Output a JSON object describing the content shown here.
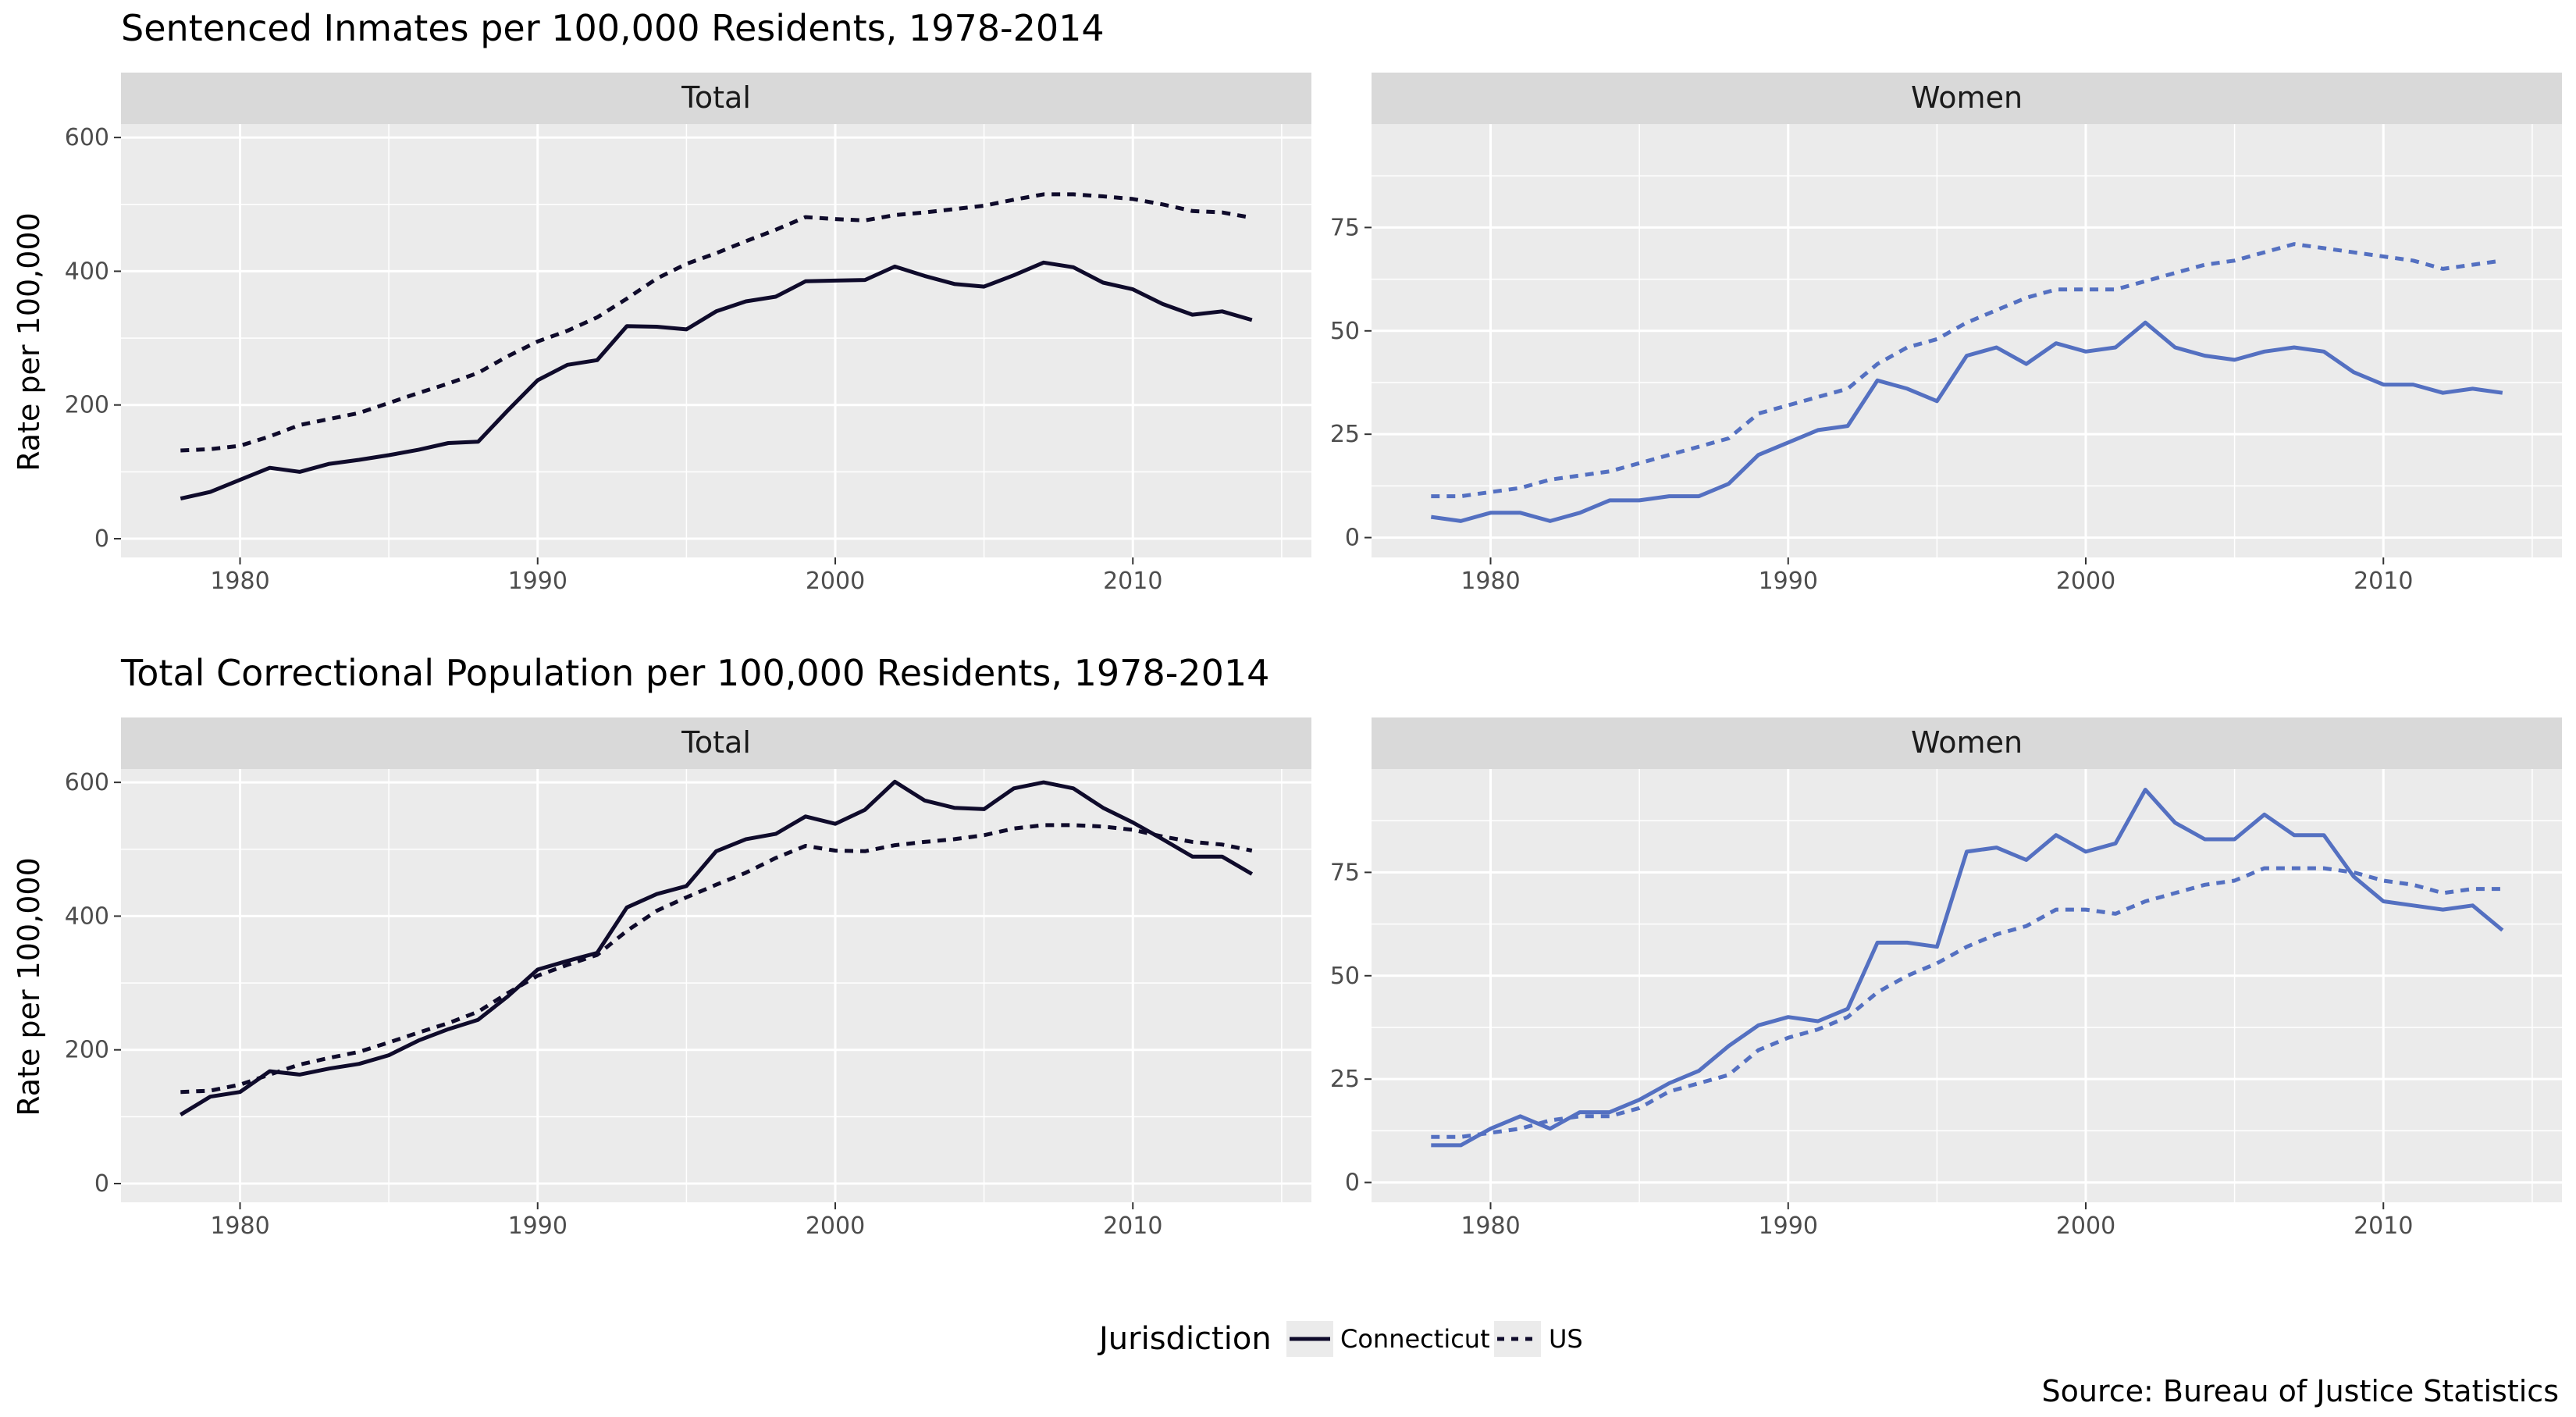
{
  "colors": {
    "total": "#0f0b2b",
    "women": "#5470c1",
    "panel_bg": "#ebebeb",
    "strip_bg": "#d9d9d9",
    "grid": "#ffffff"
  },
  "legend": {
    "title": "Jurisdiction",
    "items": [
      {
        "label": "Connecticut",
        "linetype": "solid"
      },
      {
        "label": "US",
        "linetype": "dashed"
      }
    ]
  },
  "caption": "Source: Bureau of Justice Statistics",
  "chart_data": [
    {
      "type": "line",
      "title": "Sentenced Inmates per 100,000 Residents, 1978-2014",
      "ylabel": "Rate per 100,000",
      "panels": [
        {
          "strip": "Total",
          "color_key": "total",
          "xlim": [
            1976,
            2016
          ],
          "xticks": [
            1980,
            1990,
            2000,
            2010
          ],
          "ylim": [
            -28,
            620
          ],
          "yticks": [
            0,
            200,
            400,
            600
          ],
          "x": [
            1978,
            1979,
            1980,
            1981,
            1982,
            1983,
            1984,
            1985,
            1986,
            1987,
            1988,
            1989,
            1990,
            1991,
            1992,
            1993,
            1994,
            1995,
            1996,
            1997,
            1998,
            1999,
            2000,
            2001,
            2002,
            2003,
            2004,
            2005,
            2006,
            2007,
            2008,
            2009,
            2010,
            2011,
            2012,
            2013,
            2014
          ],
          "series": [
            {
              "name": "Connecticut",
              "linetype": "solid",
              "values": [
                60,
                70,
                88,
                106,
                100,
                112,
                118,
                125,
                133,
                143,
                145,
                192,
                237,
                260,
                267,
                318,
                317,
                313,
                340,
                355,
                362,
                385,
                386,
                387,
                407,
                393,
                381,
                377,
                394,
                413,
                406,
                383,
                373,
                351,
                335,
                340,
                327
              ]
            },
            {
              "name": "US",
              "linetype": "dashed",
              "values": [
                132,
                134,
                139,
                153,
                170,
                179,
                188,
                203,
                218,
                232,
                248,
                273,
                295,
                311,
                331,
                359,
                389,
                411,
                427,
                445,
                462,
                481,
                478,
                476,
                484,
                488,
                493,
                498,
                507,
                515,
                515,
                512,
                508,
                500,
                490,
                488,
                480
              ]
            }
          ]
        },
        {
          "strip": "Women",
          "color_key": "women",
          "xlim": [
            1976,
            2016
          ],
          "xticks": [
            1980,
            1990,
            2000,
            2010
          ],
          "ylim": [
            -4.8,
            100
          ],
          "yticks": [
            0,
            25,
            50,
            75
          ],
          "x": [
            1978,
            1979,
            1980,
            1981,
            1982,
            1983,
            1984,
            1985,
            1986,
            1987,
            1988,
            1989,
            1990,
            1991,
            1992,
            1993,
            1994,
            1995,
            1996,
            1997,
            1998,
            1999,
            2000,
            2001,
            2002,
            2003,
            2004,
            2005,
            2006,
            2007,
            2008,
            2009,
            2010,
            2011,
            2012,
            2013,
            2014
          ],
          "series": [
            {
              "name": "Connecticut",
              "linetype": "solid",
              "values": [
                5,
                4,
                6,
                6,
                4,
                6,
                9,
                9,
                10,
                10,
                13,
                20,
                23,
                26,
                27,
                38,
                36,
                33,
                44,
                46,
                42,
                47,
                45,
                46,
                52,
                46,
                44,
                43,
                45,
                46,
                45,
                40,
                37,
                37,
                35,
                36,
                35
              ]
            },
            {
              "name": "US",
              "linetype": "dashed",
              "values": [
                10,
                10,
                11,
                12,
                14,
                15,
                16,
                18,
                20,
                22,
                24,
                30,
                32,
                34,
                36,
                42,
                46,
                48,
                52,
                55,
                58,
                60,
                60,
                60,
                62,
                64,
                66,
                67,
                69,
                71,
                70,
                69,
                68,
                67,
                65,
                66,
                67
              ]
            }
          ]
        }
      ]
    },
    {
      "type": "line",
      "title": "Total Correctional Population per 100,000 Residents, 1978-2014",
      "ylabel": "Rate per 100,000",
      "panels": [
        {
          "strip": "Total",
          "color_key": "total",
          "xlim": [
            1976,
            2016
          ],
          "xticks": [
            1980,
            1990,
            2000,
            2010
          ],
          "ylim": [
            -28,
            620
          ],
          "yticks": [
            0,
            200,
            400,
            600
          ],
          "x": [
            1978,
            1979,
            1980,
            1981,
            1982,
            1983,
            1984,
            1985,
            1986,
            1987,
            1988,
            1989,
            1990,
            1991,
            1992,
            1993,
            1994,
            1995,
            1996,
            1997,
            1998,
            1999,
            2000,
            2001,
            2002,
            2003,
            2004,
            2005,
            2006,
            2007,
            2008,
            2009,
            2010,
            2011,
            2012,
            2013,
            2014
          ],
          "series": [
            {
              "name": "Connecticut",
              "linetype": "solid",
              "values": [
                103,
                130,
                137,
                168,
                163,
                172,
                179,
                192,
                214,
                231,
                245,
                280,
                320,
                333,
                345,
                413,
                433,
                445,
                497,
                515,
                523,
                549,
                538,
                559,
                601,
                573,
                562,
                560,
                591,
                600,
                591,
                562,
                540,
                515,
                489,
                489,
                463
              ]
            },
            {
              "name": "US",
              "linetype": "dashed",
              "values": [
                137,
                139,
                148,
                163,
                178,
                188,
                197,
                211,
                226,
                240,
                257,
                285,
                311,
                327,
                342,
                378,
                408,
                428,
                447,
                465,
                487,
                505,
                498,
                497,
                506,
                511,
                515,
                521,
                531,
                536,
                536,
                534,
                529,
                519,
                511,
                507,
                498
              ]
            }
          ]
        },
        {
          "strip": "Women",
          "color_key": "women",
          "xlim": [
            1976,
            2016
          ],
          "xticks": [
            1980,
            1990,
            2000,
            2010
          ],
          "ylim": [
            -4.8,
            100
          ],
          "yticks": [
            0,
            25,
            50,
            75
          ],
          "x": [
            1978,
            1979,
            1980,
            1981,
            1982,
            1983,
            1984,
            1985,
            1986,
            1987,
            1988,
            1989,
            1990,
            1991,
            1992,
            1993,
            1994,
            1995,
            1996,
            1997,
            1998,
            1999,
            2000,
            2001,
            2002,
            2003,
            2004,
            2005,
            2006,
            2007,
            2008,
            2009,
            2010,
            2011,
            2012,
            2013,
            2014
          ],
          "series": [
            {
              "name": "Connecticut",
              "linetype": "solid",
              "values": [
                9,
                9,
                13,
                16,
                13,
                17,
                17,
                20,
                24,
                27,
                33,
                38,
                40,
                39,
                42,
                58,
                58,
                57,
                80,
                81,
                78,
                84,
                80,
                82,
                95,
                87,
                83,
                83,
                89,
                84,
                84,
                74,
                68,
                67,
                66,
                67,
                61
              ]
            },
            {
              "name": "US",
              "linetype": "dashed",
              "values": [
                11,
                11,
                12,
                13,
                15,
                16,
                16,
                18,
                22,
                24,
                26,
                32,
                35,
                37,
                40,
                46,
                50,
                53,
                57,
                60,
                62,
                66,
                66,
                65,
                68,
                70,
                72,
                73,
                76,
                76,
                76,
                75,
                73,
                72,
                70,
                71,
                71
              ]
            }
          ]
        }
      ]
    }
  ]
}
